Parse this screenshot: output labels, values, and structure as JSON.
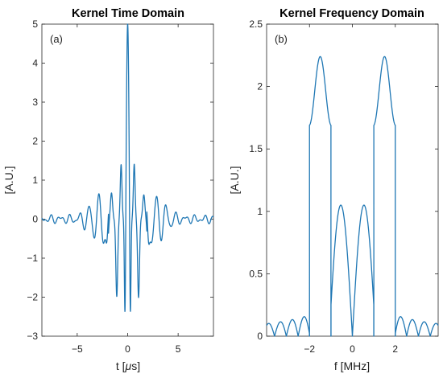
{
  "chart_data": [
    {
      "type": "line",
      "title": "Kernel Time Domain",
      "panel_label": "(a)",
      "xlabel": "t [μs]",
      "ylabel": "[A.U.]",
      "xlim": [
        -8.5,
        8.5
      ],
      "ylim": [
        -3,
        5
      ],
      "xticks": [
        -5,
        0,
        5
      ],
      "yticks": [
        -3,
        -2,
        -1,
        0,
        1,
        2,
        3,
        4,
        5
      ],
      "grid": false,
      "series": [
        {
          "color": "#1f77b4",
          "peaks": [
            {
              "x": 0.0,
              "y": 5.0
            },
            {
              "x": -0.25,
              "y": -2.8
            },
            {
              "x": 0.25,
              "y": -2.8
            },
            {
              "x": -0.65,
              "y": 1.35
            },
            {
              "x": 0.65,
              "y": 1.35
            },
            {
              "x": -1.1,
              "y": -2.0
            },
            {
              "x": 1.1,
              "y": -2.0
            },
            {
              "x": -1.6,
              "y": 0.6
            },
            {
              "x": 1.6,
              "y": 0.6
            }
          ]
        }
      ]
    },
    {
      "type": "line",
      "title": "Kernel Frequency Domain",
      "panel_label": "(b)",
      "xlabel": "f [MHz]",
      "ylabel": "[A.U.]",
      "xlim": [
        -4,
        4
      ],
      "ylim": [
        0,
        2.5
      ],
      "xticks": [
        -2,
        0,
        2
      ],
      "yticks": [
        0,
        0.5,
        1,
        1.5,
        2,
        2.5
      ],
      "grid": false,
      "series": [
        {
          "color": "#1f77b4",
          "passbands": [
            {
              "f_start": -2.0,
              "f_end": -1.0,
              "edge_values": [
                2.18,
                2.14
              ],
              "peak": 2.2,
              "dip": 1.68
            },
            {
              "f_start": 1.0,
              "f_end": 2.0,
              "edge_values": [
                2.14,
                2.18
              ],
              "peak": 2.2,
              "dip": 1.68
            }
          ],
          "center_lobes": [
            {
              "x": -0.55,
              "y": 1.05
            },
            {
              "x": 0.55,
              "y": 1.05
            }
          ],
          "outer_sidelobe_peak": 0.16
        }
      ]
    }
  ]
}
